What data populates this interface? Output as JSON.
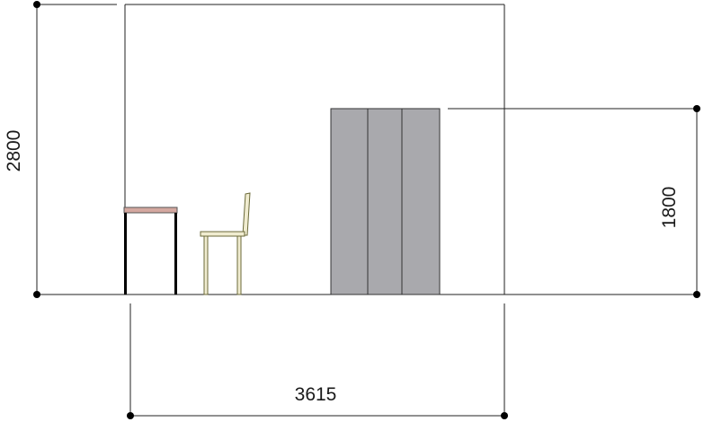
{
  "dimensions": {
    "room_height": "2800",
    "cabinet_height": "1800",
    "room_width": "3615"
  },
  "colors": {
    "line": "#000000",
    "thin_line": "#222222",
    "cabinet_fill": "#a9a9ad",
    "desk_top": "#d4a8a0",
    "chair_fill": "#f0ecd0",
    "chair_stroke": "#6b6a3a"
  }
}
